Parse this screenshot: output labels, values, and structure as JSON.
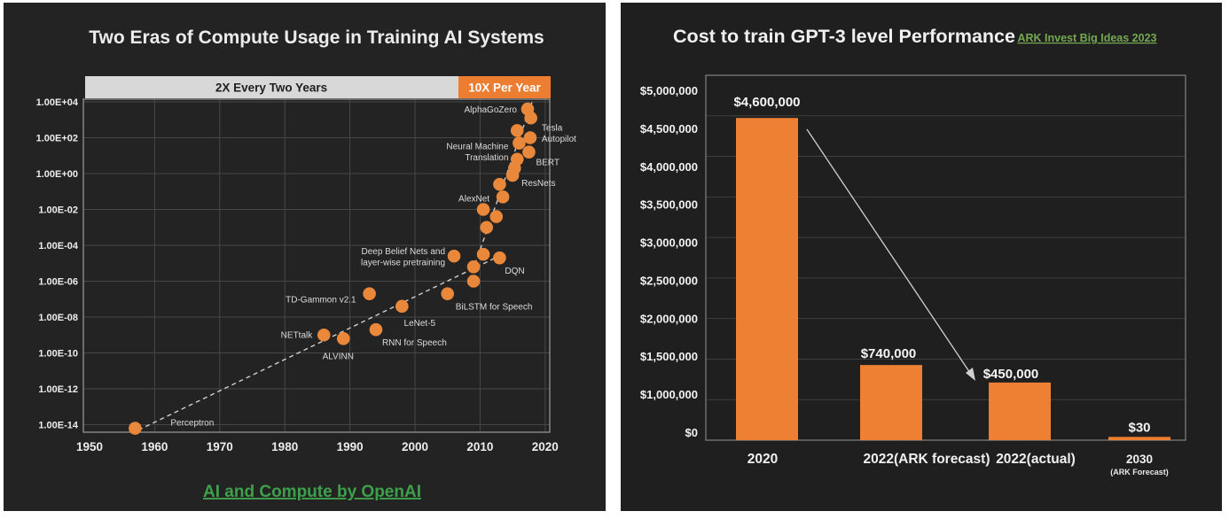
{
  "page": {
    "background": "#ffffff",
    "left_panel_bg": "#232323",
    "right_panel_bg": "#1f1f1f"
  },
  "chart_data": [
    {
      "type": "scatter",
      "title": "Two Eras of Compute Usage in Training AI Systems",
      "source_link": "AI and Compute by OpenAI",
      "link_color": "#3da04b",
      "point_color": "#e9873a",
      "grid": true,
      "x_axis": {
        "tick_labels": [
          "1950",
          "1960",
          "1970",
          "1980",
          "1990",
          "2000",
          "2010",
          "2020"
        ],
        "tick_values": [
          1950,
          1960,
          1970,
          1980,
          1990,
          2000,
          2010,
          2020
        ],
        "range": [
          1949,
          2022.8
        ]
      },
      "y_axis": {
        "scale": "log10",
        "tick_labels": [
          "1.00E+04",
          "1.00E+02",
          "1.00E+00",
          "1.00E-02",
          "1.00E-04",
          "1.00E-06",
          "1.00E-08",
          "1.00E-10",
          "1.00E-12",
          "1.00E-14"
        ],
        "tick_log10_values": [
          4,
          2,
          0,
          -2,
          -4,
          -6,
          -8,
          -10,
          -12,
          -14
        ]
      },
      "eras": [
        {
          "label": "2X Every Two Years",
          "banner_color": "#d8d8d8",
          "text_color": "#1f1f1f",
          "x_start": 1949.3,
          "x_end": 2006.6,
          "trend": {
            "x1": 1957.5,
            "log1": -14.3,
            "x2": 2013.5,
            "log2": -4.5
          }
        },
        {
          "label": "10X Per Year",
          "banner_color": "#ed7d31",
          "text_color": "#ffffff",
          "x_start": 2006.6,
          "x_end": 2020.8,
          "trend": {
            "x1": 2008.4,
            "log1": -5.9,
            "x2": 2018.1,
            "log2": 4.1
          }
        }
      ],
      "points": [
        {
          "label": "Perceptron",
          "year": 1957,
          "log10_value": -14.2
        },
        {
          "label": "NETtalk",
          "year": 1986,
          "log10_value": -9.0
        },
        {
          "label": "ALVINN",
          "year": 1989,
          "log10_value": -9.2
        },
        {
          "label": "RNN for Speech",
          "year": 1994,
          "log10_value": -8.7
        },
        {
          "label": "TD-Gammon v2.1",
          "year": 1993,
          "log10_value": -6.7
        },
        {
          "label": "LeNet-5",
          "year": 1998,
          "log10_value": -7.4
        },
        {
          "label": "",
          "year": 2005,
          "log10_value": -6.7
        },
        {
          "label": "BiLSTM for Speech",
          "year": 2009,
          "log10_value": -6.0
        },
        {
          "label": "Deep Belief Nets and\nlayer-wise pretraining",
          "year": 2006,
          "log10_value": -4.6
        },
        {
          "label": "",
          "year": 2009,
          "log10_value": -5.2
        },
        {
          "label": "",
          "year": 2010.5,
          "log10_value": -4.5
        },
        {
          "label": "DQN",
          "year": 2013,
          "log10_value": -4.7
        },
        {
          "label": "",
          "year": 2011,
          "log10_value": -3.0
        },
        {
          "label": "",
          "year": 2012.5,
          "log10_value": -2.4
        },
        {
          "label": "AlexNet",
          "year": 2010.5,
          "log10_value": -2.0
        },
        {
          "label": "",
          "year": 2013.5,
          "log10_value": -1.3
        },
        {
          "label": "",
          "year": 2013,
          "log10_value": -0.6
        },
        {
          "label": "ResNets",
          "year": 2015,
          "log10_value": -0.1
        },
        {
          "label": "",
          "year": 2015.3,
          "log10_value": 0.3
        },
        {
          "label": "",
          "year": 2015.7,
          "log10_value": 0.8
        },
        {
          "label": "BERT",
          "year": 2017.5,
          "log10_value": 1.2
        },
        {
          "label": "Neural Machine\nTranslation",
          "year": 2016,
          "log10_value": 1.7
        },
        {
          "label": "Tesla\nAutopilot",
          "year": 2017.7,
          "log10_value": 2.0
        },
        {
          "label": "",
          "year": 2015.7,
          "log10_value": 2.4
        },
        {
          "label": "",
          "year": 2017.8,
          "log10_value": 3.1
        },
        {
          "label": "AlphaGoZero",
          "year": 2017.3,
          "log10_value": 3.6
        }
      ]
    },
    {
      "type": "bar",
      "title": "Cost to train GPT-3 level Performance",
      "source_link": "ARK Invest Big Ideas 2023",
      "link_color": "#74a850",
      "bar_color": "#ed8032",
      "grid": true,
      "categories": [
        "2020",
        "2022(ARK forecast)",
        "2022(actual)",
        "2030"
      ],
      "category_sublabels": [
        "",
        "",
        "",
        "(ARK Forecast)"
      ],
      "values": [
        4600000,
        740000,
        450000,
        30
      ],
      "value_labels": [
        "$4,600,000",
        "$740,000",
        "$450,000",
        "$30"
      ],
      "y_tick_labels": [
        "$5,000,000",
        "$4,500,000",
        "$4,000,000",
        "$3,500,000",
        "$3,000,000",
        "$2,500,000",
        "$2,000,000",
        "$1,500,000",
        "$1,000,000",
        "$0"
      ],
      "ylim": [
        0,
        5000000
      ],
      "bar_top_fractions_as_drawn": [
        0.883,
        0.206,
        0.158,
        0.009
      ],
      "arrow": {
        "from_category": "2020",
        "to_category": "2022(actual)"
      }
    }
  ]
}
